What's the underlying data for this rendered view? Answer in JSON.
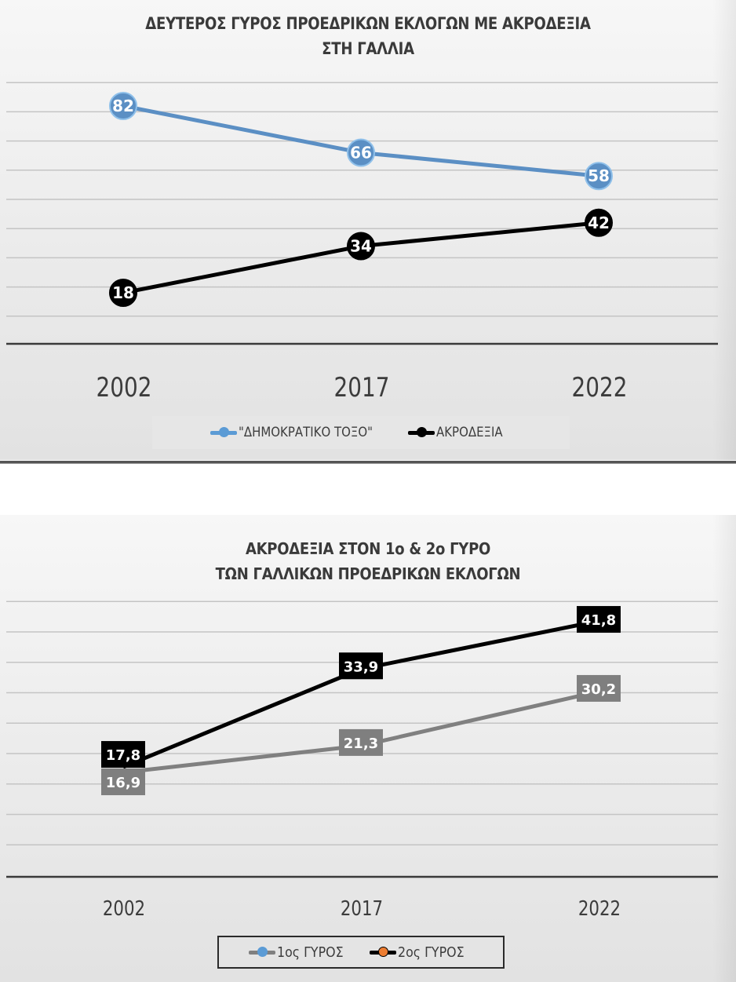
{
  "chart_data": [
    {
      "type": "line",
      "title": "ΔΕΥΤΕΡΟΣ ΓΥΡΟΣ ΠΡΟΕΔΡΙΚΩΝ ΕΚΛΟΓΩΝ ΜΕ ΑΚΡΟΔΕΞΙΑ ΣΤΗ ΓΑΛΛΙΑ",
      "title_lines": [
        "ΔΕΥΤΕΡΟΣ ΓΥΡΟΣ ΠΡΟΕΔΡΙΚΩΝ ΕΚΛΟΓΩΝ ΜΕ ΑΚΡΟΔΕΞΙΑ",
        "ΣΤΗ ΓΑΛΛΙΑ"
      ],
      "categories": [
        "2002",
        "2017",
        "2022"
      ],
      "series": [
        {
          "name": "\"ΔΗΜΟΚΡΑΤΙΚΟ ΤΟΞΟ\"",
          "values": [
            82,
            66,
            58
          ],
          "labels": [
            "82",
            "66",
            "58"
          ],
          "color": "#5b9bd5",
          "marker": "circle"
        },
        {
          "name": "ΑΚΡΟΔΕΞΙΑ",
          "values": [
            18,
            34,
            42
          ],
          "labels": [
            "18",
            "34",
            "42"
          ],
          "color": "#000000",
          "marker": "circle"
        }
      ],
      "xlabel": "",
      "ylabel": "",
      "ylim": [
        0,
        90
      ],
      "ytick_step": 10,
      "y_axis_labels_visible": false,
      "grid": true,
      "legend_position": "bottom"
    },
    {
      "type": "line",
      "title": "ΑΚΡΟΔΕΞΙΑ ΣΤΟΝ 1ο & 2ο ΓΥΡΟ ΤΩΝ ΓΑΛΛΙΚΩΝ ΠΡΟΕΔΡΙΚΩΝ ΕΚΛΟΓΩΝ",
      "title_lines": [
        "ΑΚΡΟΔΕΞΙΑ ΣΤΟΝ 1ο & 2ο ΓΥΡΟ",
        "ΤΩΝ ΓΑΛΛΙΚΩΝ ΠΡΟΕΔΡΙΚΩΝ ΕΚΛΟΓΩΝ"
      ],
      "categories": [
        "2002",
        "2017",
        "2022"
      ],
      "series": [
        {
          "name": "1ος ΓΥΡΟΣ",
          "values": [
            16.9,
            21.3,
            30.2
          ],
          "labels": [
            "16,9",
            "21,3",
            "30,2"
          ],
          "color": "#808080",
          "legend_marker_color": "#5b9bd5"
        },
        {
          "name": "2ος ΓΥΡΟΣ",
          "values": [
            17.8,
            33.9,
            41.8
          ],
          "labels": [
            "17,8",
            "33,9",
            "41,8"
          ],
          "color": "#000000",
          "legend_marker_color": "#ed7d31"
        }
      ],
      "xlabel": "",
      "ylabel": "",
      "ylim": [
        0,
        45
      ],
      "ytick_step": 5,
      "y_axis_labels_visible": false,
      "grid": true,
      "legend_position": "bottom"
    }
  ],
  "top": {
    "title_line1": "ΔΕΥΤΕΡΟΣ ΓΥΡΟΣ ΠΡΟΕΔΡΙΚΩΝ ΕΚΛΟΓΩΝ ΜΕ ΑΚΡΟΔΕΞΙΑ",
    "title_line2": "ΣΤΗ ΓΑΛΛΙΑ",
    "x_labels": [
      "2002",
      "2017",
      "2022"
    ],
    "legend": [
      "\"ΔΗΜΟΚΡΑΤΙΚΟ ΤΟΞΟ\"",
      "ΑΚΡΟΔΕΞΙΑ"
    ]
  },
  "bottom": {
    "title_line1": "ΑΚΡΟΔΕΞΙΑ ΣΤΟΝ 1ο & 2ο ΓΥΡΟ",
    "title_line2": "ΤΩΝ ΓΑΛΛΙΚΩΝ ΠΡΟΕΔΡΙΚΩΝ ΕΚΛΟΓΩΝ",
    "x_labels": [
      "2002",
      "2017",
      "2022"
    ],
    "legend": [
      "1ος ΓΥΡΟΣ",
      "2ος ΓΥΡΟΣ"
    ]
  },
  "colors": {
    "blue_series": "#5b9bd5",
    "black_series": "#000000",
    "grey_series": "#808080",
    "orange_marker": "#ed7d31",
    "gridline": "#bdbdbd",
    "axis": "#3a3a3a"
  }
}
